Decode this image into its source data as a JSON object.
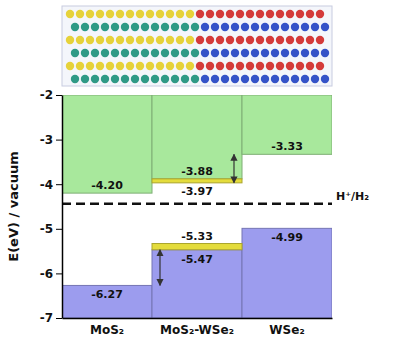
{
  "chart_data": {
    "type": "bar",
    "y_label": "E(eV) / vacuum",
    "categories": [
      "MoS₂",
      "MoS₂-WSe₂",
      "WSe₂"
    ],
    "ylim": [
      -7,
      -2
    ],
    "yticks": [
      -7,
      -6,
      -5,
      -4,
      -3,
      -2
    ],
    "data_labels": true,
    "series": [
      {
        "type": "hanging",
        "color": "#a8e89c",
        "values": [
          -4.2,
          -3.88,
          -3.33
        ],
        "value_labels": [
          "-4.20",
          "-3.88",
          "-3.33"
        ]
      },
      {
        "type": "band",
        "color": "#e4dc3c",
        "values": [
          null,
          -3.97,
          null
        ],
        "value_labels": [
          null,
          "-3.97",
          null
        ]
      },
      {
        "type": "bar",
        "color": "#9c9cee",
        "values": [
          -6.27,
          -5.47,
          -4.99
        ],
        "value_labels": [
          "-6.27",
          "-5.47",
          "-4.99"
        ]
      },
      {
        "type": "band",
        "color": "#e4dc3c",
        "values": [
          null,
          -5.33,
          null
        ],
        "value_labels": [
          null,
          "-5.33",
          null
        ]
      }
    ],
    "annotations": [
      {
        "text": "H⁺/H₂",
        "y": -4.44,
        "line_style": "dashed"
      }
    ]
  }
}
